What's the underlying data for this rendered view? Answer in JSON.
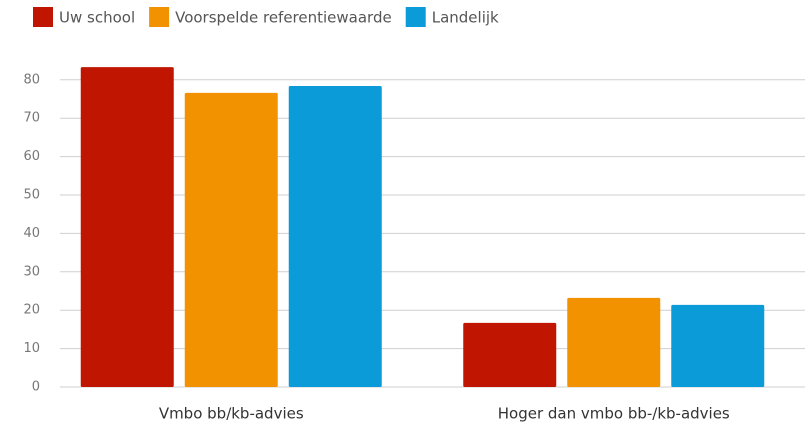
{
  "chart_data": {
    "type": "bar",
    "categories": [
      "Vmbo bb/kb-advies",
      "Hoger dan vmbo bb-/kb-advies"
    ],
    "series": [
      {
        "name": "Uw school",
        "color": "#c01500",
        "values": [
          83.3,
          16.7
        ]
      },
      {
        "name": "Voorspelde referentiewaarde",
        "color": "#f39200",
        "values": [
          76.6,
          23.2
        ]
      },
      {
        "name": "Landelijk",
        "color": "#0a9bd8",
        "values": [
          78.4,
          21.4
        ]
      }
    ],
    "ylim": [
      0,
      85
    ],
    "yticks": [
      0,
      10,
      20,
      30,
      40,
      50,
      60,
      70,
      80
    ],
    "grid": true,
    "legend": "top-left"
  }
}
